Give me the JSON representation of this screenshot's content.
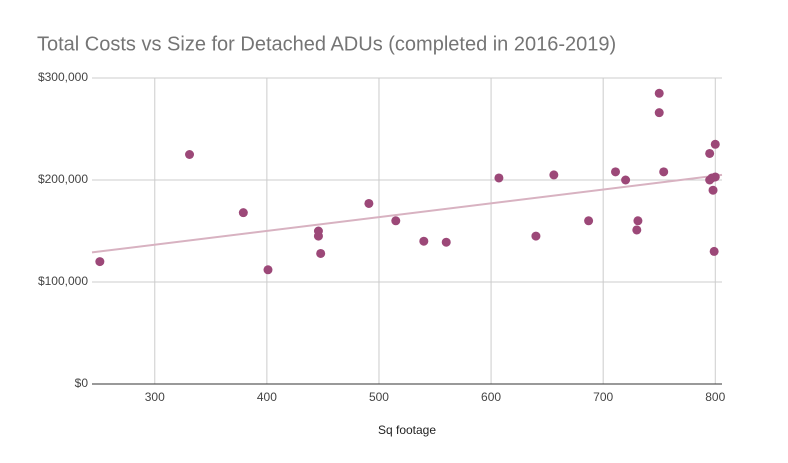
{
  "chart_data": {
    "type": "scatter",
    "title": "Total Costs vs Size for Detached ADUs (completed in 2016-2019)",
    "x_label": "Sq footage",
    "x": [
      251,
      331,
      379,
      401,
      446,
      446,
      448,
      491,
      515,
      540,
      560,
      607,
      640,
      656,
      687,
      711,
      720,
      730,
      731,
      750,
      750,
      754,
      795,
      795,
      797,
      798,
      799,
      800,
      800
    ],
    "values": [
      120000,
      225000,
      168000,
      112000,
      145000,
      150000,
      128000,
      177000,
      160000,
      140000,
      139000,
      202000,
      145000,
      205000,
      160000,
      208000,
      200000,
      151000,
      160000,
      285000,
      266000,
      208000,
      226000,
      200000,
      202000,
      190000,
      130000,
      235000,
      203000
    ],
    "color": "#9c4878",
    "trendline": {
      "x": [
        244,
        806
      ],
      "y": [
        129000,
        205000
      ],
      "color": "#d8b2c1"
    },
    "xlim": [
      244,
      806
    ],
    "xticks": [
      300,
      400,
      500,
      600,
      700,
      800
    ],
    "ylim": [
      0,
      300000
    ],
    "yticks": [
      {
        "value": 0,
        "label": "$0"
      },
      {
        "value": 100000,
        "label": "$100,000"
      },
      {
        "value": 200000,
        "label": "$200,000"
      },
      {
        "value": 300000,
        "label": "$300,000"
      }
    ],
    "grid": true
  }
}
